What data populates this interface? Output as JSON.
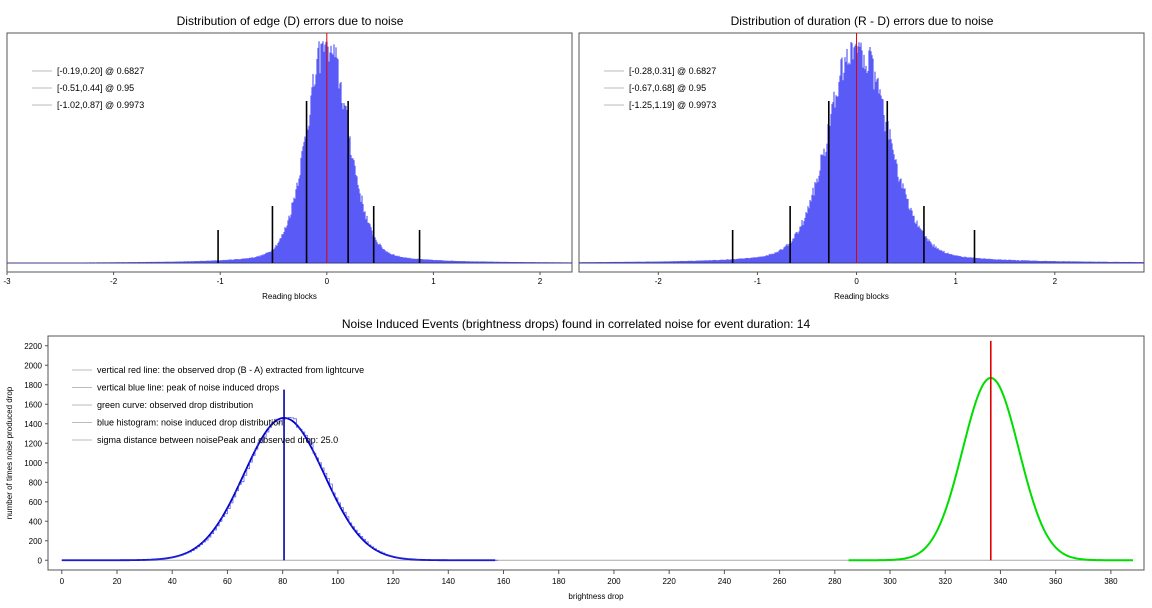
{
  "chart_data": [
    {
      "type": "bar",
      "title": "Distribution of edge (D) errors due to noise",
      "xlabel": "Reading blocks",
      "ylabel": "",
      "xlim": [
        -3,
        2.3
      ],
      "xticks": [
        -3,
        -2,
        -1,
        0,
        1,
        2
      ],
      "grid": false,
      "legend_position": "top-left",
      "histogram": {
        "center": 0,
        "sigma_left": 0.19,
        "sigma_right": 0.2
      },
      "red_line_x": 0,
      "legend": [
        {
          "label": "[-0.19,0.20] @ 0.6827",
          "interval": [
            -0.19,
            0.2
          ],
          "level": 0.6827
        },
        {
          "label": "[-0.51,0.44] @ 0.95",
          "interval": [
            -0.51,
            0.44
          ],
          "level": 0.95
        },
        {
          "label": "[-1.02,0.87] @ 0.9973",
          "interval": [
            -1.02,
            0.87
          ],
          "level": 0.9973
        }
      ]
    },
    {
      "type": "bar",
      "title": "Distribution of duration (R - D) errors due to noise",
      "xlabel": "Reading blocks",
      "ylabel": "",
      "xlim": [
        -2.8,
        2.9
      ],
      "xticks": [
        -2,
        -1,
        0,
        1,
        2
      ],
      "grid": false,
      "legend_position": "top-left",
      "histogram": {
        "center": 0,
        "sigma_left": 0.28,
        "sigma_right": 0.31
      },
      "red_line_x": 0,
      "legend": [
        {
          "label": "[-0.28,0.31] @ 0.6827",
          "interval": [
            -0.28,
            0.31
          ],
          "level": 0.6827
        },
        {
          "label": "[-0.67,0.68] @ 0.95",
          "interval": [
            -0.67,
            0.68
          ],
          "level": 0.95
        },
        {
          "label": "[-1.25,1.19] @ 0.9973",
          "interval": [
            -1.25,
            1.19
          ],
          "level": 0.9973
        }
      ]
    },
    {
      "type": "line",
      "title": "Noise Induced Events (brightness drops) found in correlated noise for event duration: 14",
      "xlabel": "brightness drop",
      "ylabel": "number of times noise produced drop",
      "xlim": [
        -5,
        392
      ],
      "ylim": [
        -100,
        2300
      ],
      "xticks": [
        0,
        20,
        40,
        60,
        80,
        100,
        120,
        140,
        160,
        180,
        200,
        220,
        240,
        260,
        280,
        300,
        320,
        340,
        360,
        380
      ],
      "yticks": [
        0,
        200,
        400,
        600,
        800,
        1000,
        1200,
        1400,
        1600,
        1800,
        2000,
        2200
      ],
      "grid": false,
      "legend_position": "top-left",
      "legend": [
        "vertical red line: the observed drop (B - A) extracted from lightcurve",
        "vertical blue line: peak of noise induced drops",
        "green curve: observed drop distribution",
        "blue histogram: noise induced drop distribution",
        "sigma distance between noisePeak and observed drop: 25.0"
      ],
      "series": [
        {
          "peak_x": 80.5,
          "peak_y": 1460,
          "sigma": 14.5,
          "x_range": [
            0,
            157
          ],
          "color": "#0000cc"
        },
        {
          "peak_x": 336.5,
          "peak_y": 1870,
          "sigma": 10.2,
          "x_range": [
            285,
            388
          ],
          "color": "#00dd00"
        }
      ],
      "blue_line": {
        "x": 80.5,
        "y_top": 1750
      },
      "red_line": {
        "x": 336.5,
        "y_top": 2250
      }
    }
  ],
  "colors": {
    "histogram": "#5a5af7",
    "red": "#e00000",
    "green": "#00dd00",
    "blue": "#0000aa"
  }
}
